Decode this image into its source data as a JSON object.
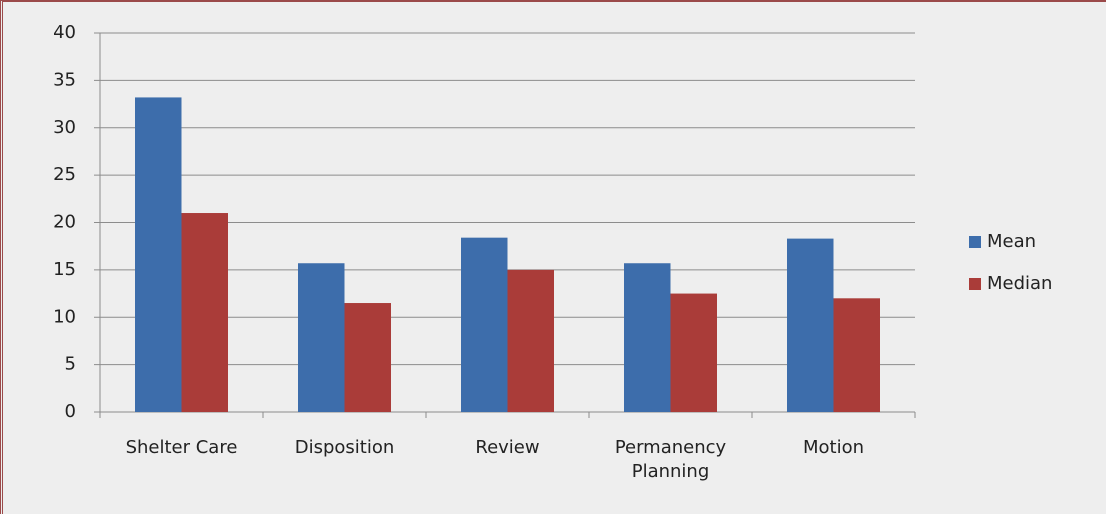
{
  "chart_data": {
    "type": "bar",
    "categories": [
      "Shelter Care",
      "Disposition",
      "Review",
      "Permanency Planning",
      "Motion"
    ],
    "series": [
      {
        "name": "Mean",
        "color": "#3d6dab",
        "values": [
          33.2,
          15.7,
          18.4,
          15.7,
          18.3
        ]
      },
      {
        "name": "Median",
        "color": "#aa3c39",
        "values": [
          21,
          11.5,
          15,
          12.5,
          12
        ]
      }
    ],
    "ylim": [
      0,
      40
    ],
    "yticks": [
      0,
      5,
      10,
      15,
      20,
      25,
      30,
      35,
      40
    ],
    "grid": true,
    "legend": "right"
  }
}
